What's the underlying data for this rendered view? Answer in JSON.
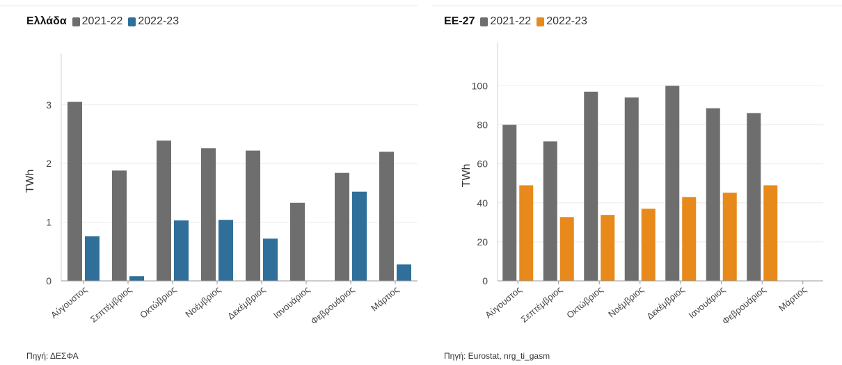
{
  "chart_data": [
    {
      "type": "bar",
      "title": "Ελλάδα",
      "ylabel": "TWh",
      "xlabel": "",
      "ylim": [
        0,
        3.4
      ],
      "yticks": [
        0,
        1,
        2,
        3
      ],
      "grid": true,
      "legend": "top-left",
      "categories": [
        "Αύγουστος",
        "Σεπτέμβριος",
        "Οκτώβριος",
        "Νοέμβριος",
        "Δεκέμβριος",
        "Ιανουάριος",
        "Φεβρουάριος",
        "Μάρτιος"
      ],
      "series": [
        {
          "name": "2021-22",
          "color": "#6e6e6e",
          "values": [
            3.05,
            1.88,
            2.39,
            2.26,
            2.22,
            1.33,
            1.84,
            2.2
          ]
        },
        {
          "name": "2022-23",
          "color": "#2f6f99",
          "values": [
            0.76,
            0.08,
            1.03,
            1.04,
            0.72,
            null,
            1.52,
            0.28
          ]
        }
      ],
      "source": "Πηγή: ΔΕΣΦΑ"
    },
    {
      "type": "bar",
      "title": "ΕΕ-27",
      "ylabel": "TWh",
      "xlabel": "",
      "ylim": [
        0,
        108
      ],
      "yticks": [
        0,
        20,
        40,
        60,
        80,
        100
      ],
      "grid": true,
      "legend": "top-left",
      "categories": [
        "Αύγουστος",
        "Σεπτέμβριος",
        "Οκτώβριος",
        "Νοέμβριος",
        "Δεκέμβριος",
        "Ιανουάριος",
        "Φεβρουάριος",
        "Μάρτιος"
      ],
      "series": [
        {
          "name": "2021-22",
          "color": "#6e6e6e",
          "values": [
            80,
            71.5,
            97,
            94,
            100,
            88.5,
            86,
            null
          ]
        },
        {
          "name": "2022-23",
          "color": "#e8891c",
          "values": [
            49,
            32.7,
            33.8,
            37,
            43,
            45.2,
            49,
            null
          ]
        }
      ],
      "source": "Πηγή: Eurostat, nrg_ti_gasm"
    }
  ]
}
